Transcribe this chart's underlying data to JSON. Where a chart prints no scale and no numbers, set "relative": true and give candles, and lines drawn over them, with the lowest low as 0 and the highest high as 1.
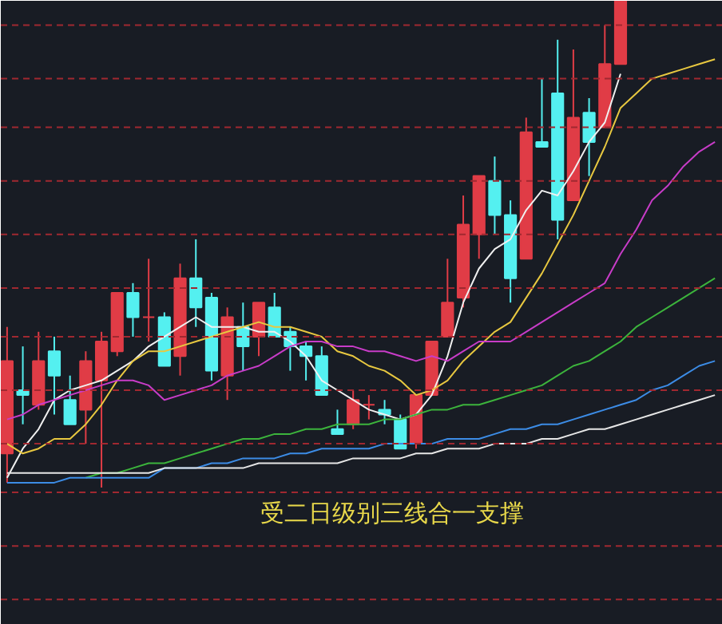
{
  "chart_data": {
    "type": "candlestick",
    "relative": true,
    "tick_labels": false,
    "ref_lines": [
      {
        "axis": "y",
        "value": 0.95,
        "color": "#a02830",
        "line_style": "dashed"
      },
      {
        "axis": "y",
        "value": 0.84,
        "color": "#a02830",
        "line_style": "dashed"
      },
      {
        "axis": "y",
        "value": 0.74,
        "color": "#a02830",
        "line_style": "dashed"
      },
      {
        "axis": "y",
        "value": 0.63,
        "color": "#a02830",
        "line_style": "dashed"
      },
      {
        "axis": "y",
        "value": 0.52,
        "color": "#a02830",
        "line_style": "dashed"
      },
      {
        "axis": "y",
        "value": 0.41,
        "color": "#a02830",
        "line_style": "dashed"
      },
      {
        "axis": "y",
        "value": 0.31,
        "color": "#a02830",
        "line_style": "dashed"
      },
      {
        "axis": "y",
        "value": 0.2,
        "color": "#a02830",
        "line_style": "dashed"
      },
      {
        "axis": "y",
        "value": 0.09,
        "color": "#a02830",
        "line_style": "dashed"
      },
      {
        "axis": "y",
        "value": -0.01,
        "color": "#a02830",
        "line_style": "dashed"
      },
      {
        "axis": "y",
        "value": -0.12,
        "color": "#a02830",
        "line_style": "dashed"
      },
      {
        "axis": "y",
        "value": -0.23,
        "color": "#a02830",
        "line_style": "dashed"
      }
    ],
    "categories": [
      null,
      null,
      null,
      null,
      null,
      null,
      null,
      null,
      null,
      null,
      null,
      null,
      null,
      null,
      null,
      null,
      null,
      null,
      null,
      null,
      null,
      null,
      null,
      null,
      null,
      null,
      null,
      null,
      null,
      null,
      null,
      null,
      null,
      null,
      null,
      null,
      null,
      null,
      null,
      null,
      null,
      null,
      null,
      null,
      null,
      null
    ],
    "annotations": [
      "受二日级别三线合一支撑"
    ],
    "ohlc": [
      [
        0.07,
        0.33,
        0.01,
        0.26
      ],
      [
        0.2,
        0.29,
        0.13,
        0.19
      ],
      [
        0.17,
        0.32,
        0.16,
        0.26
      ],
      [
        0.28,
        0.31,
        0.15,
        0.23
      ],
      [
        0.18,
        0.23,
        0.13,
        0.13
      ],
      [
        0.16,
        0.28,
        0.09,
        0.26
      ],
      [
        0.22,
        0.32,
        0,
        0.3
      ],
      [
        0.28,
        0.4,
        0.27,
        0.4
      ],
      [
        0.4,
        0.42,
        0.31,
        0.35
      ],
      [
        0.35,
        0.47,
        0.3,
        0.35
      ],
      [
        0.35,
        0.36,
        0.25,
        0.25
      ],
      [
        0.27,
        0.46,
        0.23,
        0.43
      ],
      [
        0.43,
        0.51,
        0.33,
        0.37
      ],
      [
        0.39,
        0.4,
        0.22,
        0.24
      ],
      [
        0.23,
        0.37,
        0.18,
        0.35
      ],
      [
        0.33,
        0.38,
        0.24,
        0.29
      ],
      [
        0.31,
        0.38,
        0.27,
        0.38
      ],
      [
        0.37,
        0.4,
        0.31,
        0.31
      ],
      [
        0.32,
        0.33,
        0.24,
        0.29
      ],
      [
        0.29,
        0.3,
        0.22,
        0.27
      ],
      [
        0.27,
        0.29,
        0.19,
        0.19
      ],
      [
        0.12,
        0.16,
        0.11,
        0.11
      ],
      [
        0.13,
        0.2,
        0.12,
        0.18
      ],
      [
        0.17,
        0.19,
        0.14,
        0.17
      ],
      [
        0.16,
        0.18,
        0.13,
        0.15
      ],
      [
        0.14,
        0.15,
        0.08,
        0.08
      ],
      [
        0.09,
        0.19,
        0.08,
        0.19
      ],
      [
        0.19,
        0.3,
        0.19,
        0.3
      ],
      [
        0.31,
        0.47,
        0.31,
        0.38
      ],
      [
        0.39,
        0.6,
        0.37,
        0.54
      ],
      [
        0.52,
        0.64,
        0.47,
        0.64
      ],
      [
        0.63,
        0.68,
        0.52,
        0.56
      ],
      [
        0.56,
        0.59,
        0.38,
        0.43
      ],
      [
        0.47,
        0.76,
        0.47,
        0.73
      ],
      [
        0.71,
        0.84,
        0.7,
        0.7
      ],
      [
        0.81,
        0.92,
        0.51,
        0.55
      ],
      [
        0.59,
        0.9,
        0.59,
        0.76
      ],
      [
        0.77,
        0.8,
        0.64,
        0.71
      ],
      [
        0.74,
        0.95,
        0.74,
        0.87
      ],
      [
        0.87,
        1,
        0.87,
        1
      ],
      null,
      null,
      null,
      null,
      null,
      null
    ],
    "series": [
      {
        "type": "line",
        "color": "#f0f0f0",
        "values": [
          0.02,
          0.08,
          0.12,
          0.18,
          0.2,
          0.21,
          0.22,
          0.24,
          0.26,
          0.29,
          0.31,
          0.33,
          0.35,
          0.33,
          0.33,
          0.33,
          0.32,
          0.32,
          0.3,
          0.27,
          0.22,
          0.2,
          0.18,
          0.16,
          0.15,
          0.14,
          0.15,
          0.19,
          0.27,
          0.38,
          0.45,
          0.49,
          0.51,
          0.57,
          0.61,
          0.6,
          0.65,
          0.71,
          0.75,
          0.85,
          null,
          null,
          null,
          null,
          null,
          null
        ]
      },
      {
        "type": "line",
        "color": "#e8c840",
        "values": [
          0.09,
          0.07,
          0.08,
          0.1,
          0.1,
          0.13,
          0.17,
          0.22,
          0.26,
          0.28,
          0.28,
          0.29,
          0.3,
          0.31,
          0.32,
          0.33,
          0.34,
          0.33,
          0.33,
          0.32,
          0.31,
          0.28,
          0.27,
          0.25,
          0.24,
          0.22,
          0.19,
          0.2,
          0.22,
          0.26,
          0.29,
          0.32,
          0.34,
          0.39,
          0.44,
          0.5,
          0.56,
          0.63,
          0.7,
          0.78,
          0.81,
          0.84,
          0.85,
          0.86,
          0.87,
          0.88
        ]
      },
      {
        "type": "line",
        "color": "#c83cc8",
        "values": [
          0.14,
          0.15,
          0.17,
          0.18,
          0.19,
          0.2,
          0.21,
          0.22,
          0.22,
          0.21,
          0.18,
          0.19,
          0.2,
          0.21,
          0.23,
          0.24,
          0.25,
          0.27,
          0.29,
          0.3,
          0.3,
          0.29,
          0.29,
          0.28,
          0.28,
          0.27,
          0.26,
          0.27,
          0.26,
          0.28,
          0.3,
          0.3,
          0.3,
          0.32,
          0.34,
          0.36,
          0.38,
          0.4,
          0.42,
          0.48,
          0.53,
          0.59,
          0.62,
          0.66,
          0.69,
          0.71
        ]
      },
      {
        "type": "line",
        "color": "#3cb43c",
        "values": [
          null,
          null,
          null,
          null,
          null,
          0.02,
          0.03,
          0.03,
          0.04,
          0.05,
          0.05,
          0.06,
          0.07,
          0.08,
          0.09,
          0.1,
          0.1,
          0.11,
          0.11,
          0.12,
          0.12,
          0.13,
          0.13,
          0.13,
          0.14,
          0.14,
          0.15,
          0.16,
          0.16,
          0.17,
          0.17,
          0.18,
          0.19,
          0.2,
          0.21,
          0.23,
          0.25,
          0.26,
          0.28,
          0.3,
          0.33,
          0.35,
          0.37,
          0.39,
          0.41,
          0.43
        ]
      },
      {
        "type": "line",
        "color": "#3c8ce6",
        "values": [
          0.01,
          0.01,
          0.01,
          0.01,
          0.02,
          0.02,
          0.02,
          0.02,
          0.02,
          0.02,
          0.04,
          0.04,
          0.04,
          0.05,
          0.05,
          0.06,
          0.06,
          0.06,
          0.07,
          0.07,
          0.08,
          0.08,
          0.08,
          0.08,
          0.09,
          0.09,
          0.09,
          0.09,
          0.1,
          0.1,
          0.1,
          0.11,
          0.12,
          0.12,
          0.13,
          0.13,
          0.14,
          0.15,
          0.16,
          0.17,
          0.18,
          0.2,
          0.21,
          0.23,
          0.25,
          0.26
        ]
      },
      {
        "type": "line",
        "color": "#e6e6e6",
        "values": [
          0.03,
          0.03,
          0.03,
          0.03,
          0.03,
          0.03,
          0.03,
          0.03,
          0.03,
          0.03,
          0.04,
          0.04,
          0.04,
          0.04,
          0.04,
          0.04,
          0.05,
          0.05,
          0.05,
          0.05,
          0.05,
          0.05,
          0.06,
          0.06,
          0.06,
          0.06,
          0.07,
          0.07,
          0.08,
          0.08,
          0.08,
          0.09,
          0.09,
          0.09,
          0.1,
          0.1,
          0.11,
          0.12,
          0.12,
          0.13,
          0.14,
          0.15,
          0.16,
          0.17,
          0.18,
          0.19
        ]
      }
    ]
  }
}
